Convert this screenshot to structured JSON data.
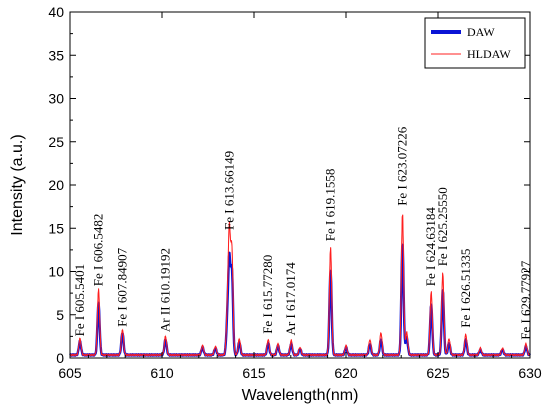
{
  "chart_data": {
    "type": "line",
    "xlabel": "Wavelength(nm)",
    "ylabel": "Intensity (a.u.)",
    "xlim": [
      605,
      630
    ],
    "ylim": [
      0,
      40
    ],
    "x_ticks": [
      "605",
      "610",
      "615",
      "620",
      "625",
      "630"
    ],
    "y_ticks": [
      "0",
      "5",
      "10",
      "15",
      "20",
      "25",
      "30",
      "35",
      "40"
    ],
    "legend_position": "top-right",
    "baseline": 0.35,
    "series": [
      {
        "name": "DAW",
        "color": "#0a14d6",
        "width": "thick",
        "peaks": [
          {
            "x": 605.54,
            "y": 1.6
          },
          {
            "x": 606.55,
            "y": 6.0
          },
          {
            "x": 607.85,
            "y": 2.6
          },
          {
            "x": 610.19,
            "y": 1.8
          },
          {
            "x": 612.2,
            "y": 0.9
          },
          {
            "x": 612.9,
            "y": 0.8
          },
          {
            "x": 613.55,
            "y": 3.5
          },
          {
            "x": 613.66,
            "y": 10.5
          },
          {
            "x": 613.8,
            "y": 9.5
          },
          {
            "x": 614.2,
            "y": 1.5
          },
          {
            "x": 615.77,
            "y": 1.4
          },
          {
            "x": 616.3,
            "y": 1.1
          },
          {
            "x": 617.02,
            "y": 1.3
          },
          {
            "x": 617.5,
            "y": 0.7
          },
          {
            "x": 619.16,
            "y": 9.8
          },
          {
            "x": 620.0,
            "y": 0.9
          },
          {
            "x": 621.3,
            "y": 1.3
          },
          {
            "x": 621.9,
            "y": 1.8
          },
          {
            "x": 623.07,
            "y": 13.0
          },
          {
            "x": 623.3,
            "y": 2.0
          },
          {
            "x": 624.63,
            "y": 5.8
          },
          {
            "x": 625.26,
            "y": 7.5
          },
          {
            "x": 625.6,
            "y": 1.4
          },
          {
            "x": 626.51,
            "y": 1.8
          },
          {
            "x": 627.3,
            "y": 0.6
          },
          {
            "x": 628.5,
            "y": 0.6
          },
          {
            "x": 629.78,
            "y": 1.0
          }
        ]
      },
      {
        "name": "HLDAW",
        "color": "#ff2020",
        "width": "thin",
        "peaks": [
          {
            "x": 605.54,
            "y": 1.9
          },
          {
            "x": 606.55,
            "y": 7.6
          },
          {
            "x": 607.85,
            "y": 3.0
          },
          {
            "x": 610.19,
            "y": 2.2
          },
          {
            "x": 612.2,
            "y": 1.1
          },
          {
            "x": 612.9,
            "y": 1.0
          },
          {
            "x": 613.55,
            "y": 4.2
          },
          {
            "x": 613.66,
            "y": 13.8
          },
          {
            "x": 613.8,
            "y": 12.0
          },
          {
            "x": 614.2,
            "y": 1.9
          },
          {
            "x": 615.77,
            "y": 1.8
          },
          {
            "x": 616.3,
            "y": 1.3
          },
          {
            "x": 617.02,
            "y": 1.7
          },
          {
            "x": 617.5,
            "y": 0.9
          },
          {
            "x": 619.16,
            "y": 12.5
          },
          {
            "x": 620.0,
            "y": 1.1
          },
          {
            "x": 621.3,
            "y": 1.8
          },
          {
            "x": 621.9,
            "y": 2.6
          },
          {
            "x": 623.07,
            "y": 16.5
          },
          {
            "x": 623.3,
            "y": 2.6
          },
          {
            "x": 624.63,
            "y": 7.3
          },
          {
            "x": 625.26,
            "y": 9.5
          },
          {
            "x": 625.6,
            "y": 1.9
          },
          {
            "x": 626.51,
            "y": 2.4
          },
          {
            "x": 627.3,
            "y": 0.8
          },
          {
            "x": 628.5,
            "y": 0.8
          },
          {
            "x": 629.78,
            "y": 1.3
          }
        ]
      }
    ],
    "annotations": [
      {
        "text": "Fe I 605.5401",
        "x": 605.54,
        "y": 2.5
      },
      {
        "text": "Fe I 606.5482",
        "x": 606.55,
        "y": 8.3
      },
      {
        "text": "Fe I 607.84907",
        "x": 607.85,
        "y": 3.6
      },
      {
        "text": "Ar II 610.19192",
        "x": 610.19,
        "y": 3.0
      },
      {
        "text": "Fe I 613.66149",
        "x": 613.66,
        "y": 14.8
      },
      {
        "text": "Fe I 615.77280",
        "x": 615.77,
        "y": 2.8
      },
      {
        "text": "Ar I 617.0174",
        "x": 617.02,
        "y": 2.6
      },
      {
        "text": "Fe I 619.1558",
        "x": 619.16,
        "y": 13.5
      },
      {
        "text": "Fe I 623.07226",
        "x": 623.07,
        "y": 17.6
      },
      {
        "text": "Fe I 624.63184",
        "x": 624.63,
        "y": 8.3
      },
      {
        "text": "Fe I 625.25550",
        "x": 625.26,
        "y": 10.6
      },
      {
        "text": "Fe I 626.51335",
        "x": 626.51,
        "y": 3.5
      },
      {
        "text": "Fe I 629.77927",
        "x": 629.78,
        "y": 2.1
      }
    ]
  }
}
